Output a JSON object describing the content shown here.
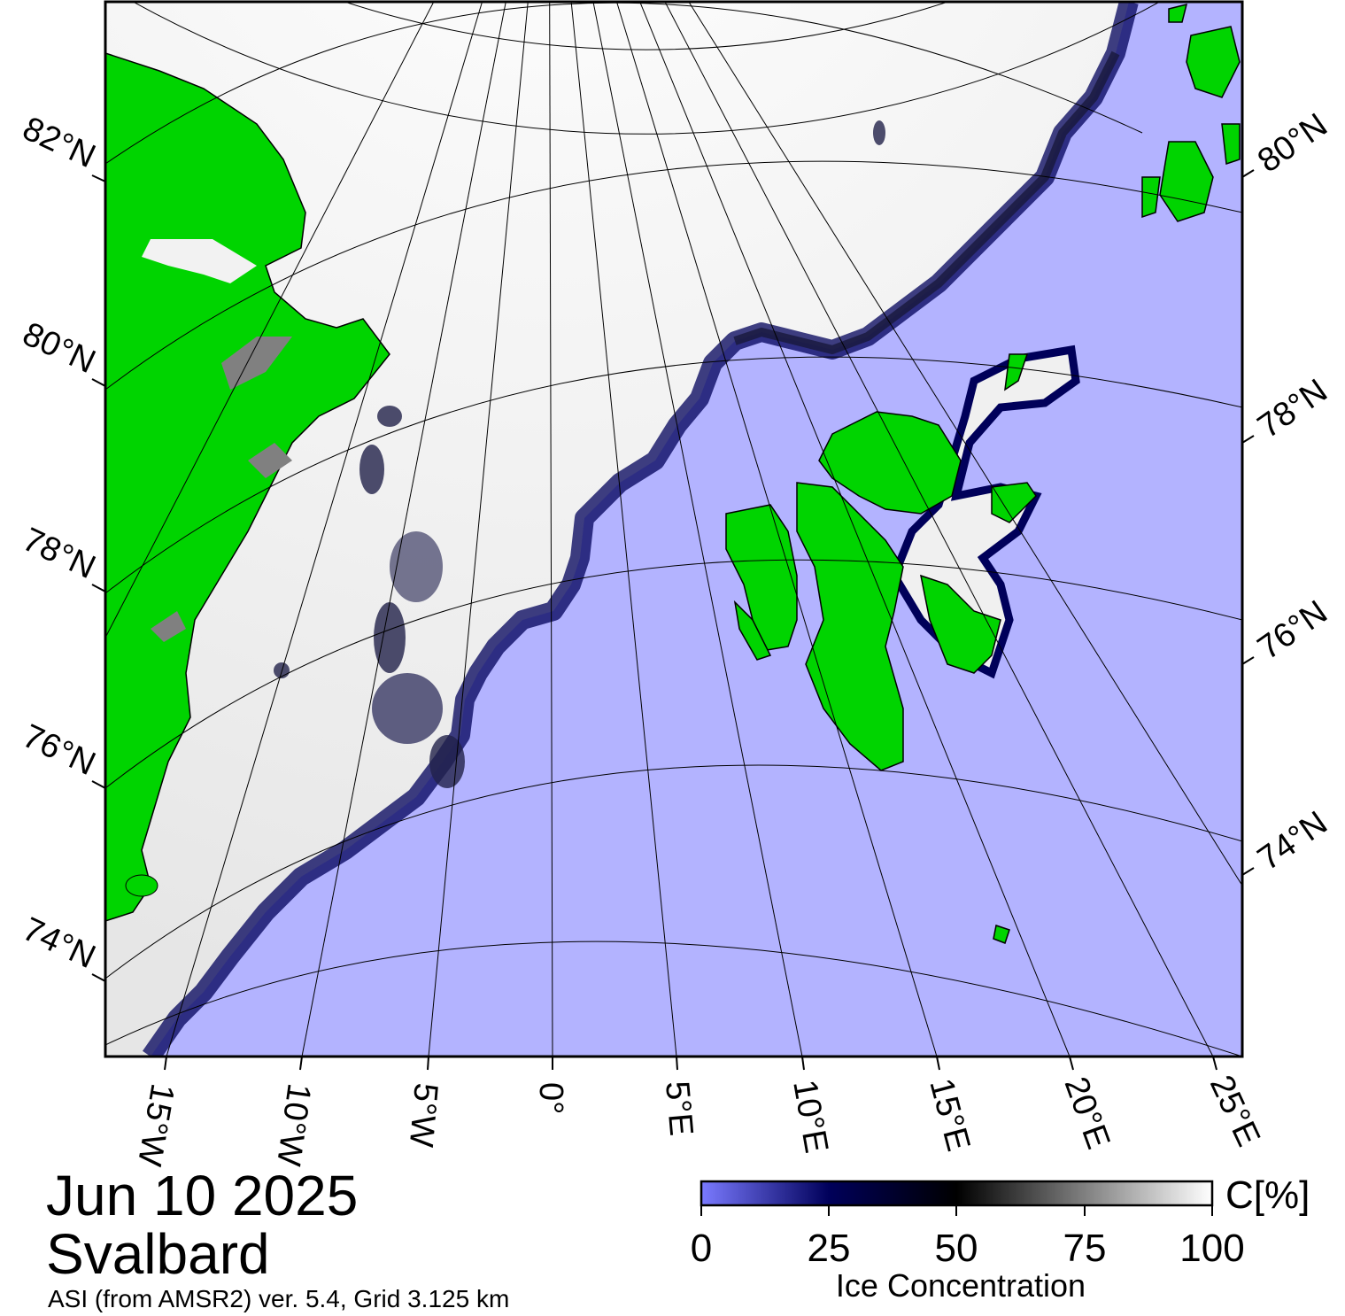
{
  "map": {
    "date": "Jun 10 2025",
    "region": "Svalbard",
    "product": "ASI (from AMSR2) ver. 5.4,  Grid 3.125 km",
    "projection": "polar stereographic",
    "left_lat_labels": [
      "82°N",
      "80°N",
      "78°N",
      "76°N",
      "74°N"
    ],
    "right_lat_labels": [
      "80°N",
      "78°N",
      "76°N",
      "74°N"
    ],
    "lon_labels": [
      "15°W",
      "10°W",
      "5°W",
      "0°",
      "5°E",
      "10°E",
      "15°E",
      "20°E",
      "25°E"
    ],
    "colors": {
      "open_water": "#b3b3ff",
      "land": "#00d400",
      "coast_ice": "#7f7f7f",
      "ice_high": "#ffffff",
      "ice_mid": "#000000",
      "ice_low": "#00005a",
      "grid": "#000000"
    }
  },
  "colorbar": {
    "label": "Ice Concentration",
    "unit": "C[%]",
    "ticks": [
      "0",
      "25",
      "50",
      "75",
      "100"
    ],
    "range": [
      0,
      100
    ],
    "stops": [
      "#7a7aff",
      "#00005a",
      "#000000",
      "#ffffff"
    ]
  }
}
